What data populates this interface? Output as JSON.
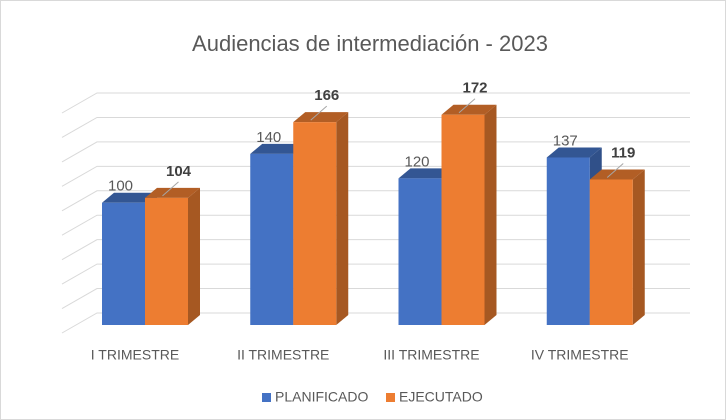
{
  "chart_data": {
    "type": "bar3d",
    "title": "Audiencias de intermediación - 2023",
    "categories": [
      "I TRIMESTRE",
      "II TRIMESTRE",
      "III TRIMESTRE",
      "IV TRIMESTRE"
    ],
    "series": [
      {
        "name": "PLANIFICADO",
        "color": "#4472c4",
        "values": [
          100,
          140,
          120,
          137
        ]
      },
      {
        "name": "EJECUTADO",
        "color": "#ed7d31",
        "values": [
          104,
          166,
          172,
          119
        ]
      }
    ],
    "ylim": [
      0,
      180
    ],
    "yticks": [
      0,
      20,
      40,
      60,
      80,
      100,
      120,
      140,
      160,
      180
    ],
    "grid": true,
    "legend": "bottom"
  }
}
